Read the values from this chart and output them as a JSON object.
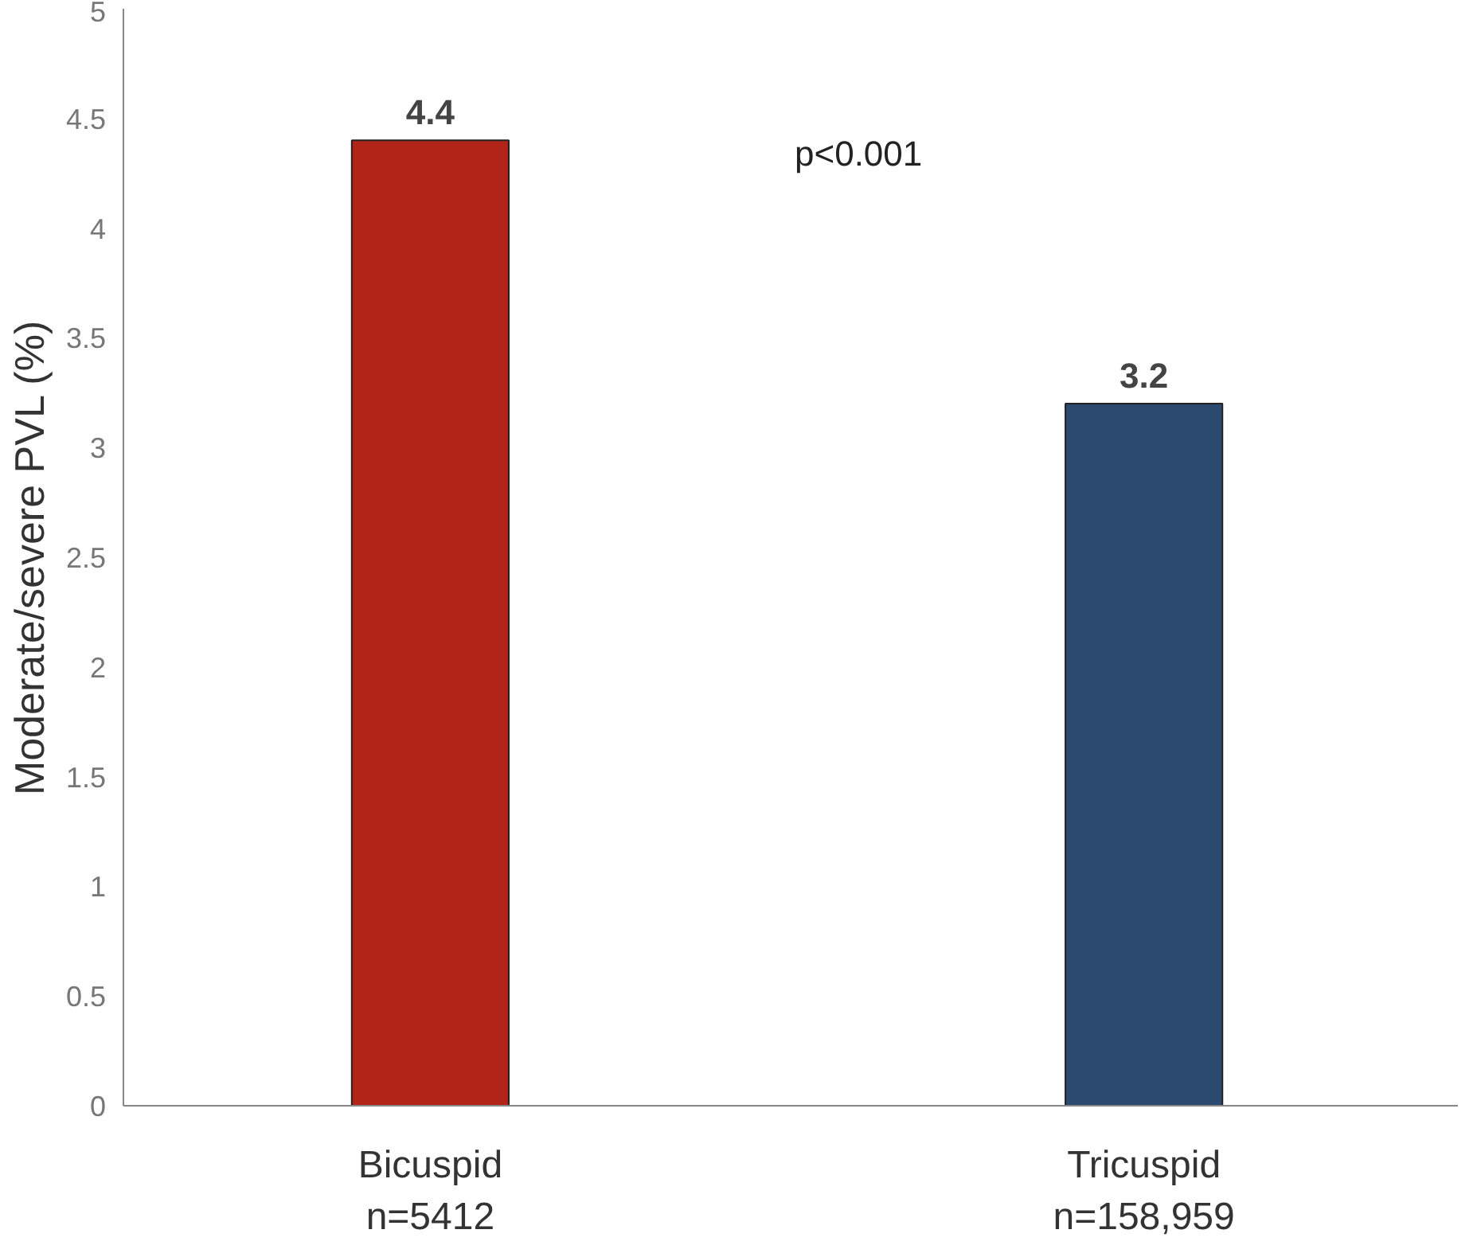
{
  "chart_data": {
    "type": "bar",
    "categories": [
      "Bicuspid\nn=5412",
      "Tricuspid\nn=158,959"
    ],
    "values": [
      4.4,
      3.2
    ],
    "colors": [
      "#b22417",
      "#2c4a70"
    ],
    "ylabel": "Moderate/severe PVL (%)",
    "ylim": [
      0,
      5
    ],
    "yticks": [
      0,
      0.5,
      1,
      1.5,
      2,
      2.5,
      3,
      3.5,
      4,
      4.5,
      5
    ],
    "data_labels": true,
    "grid": false,
    "annotations": [
      "p<0.001"
    ]
  }
}
